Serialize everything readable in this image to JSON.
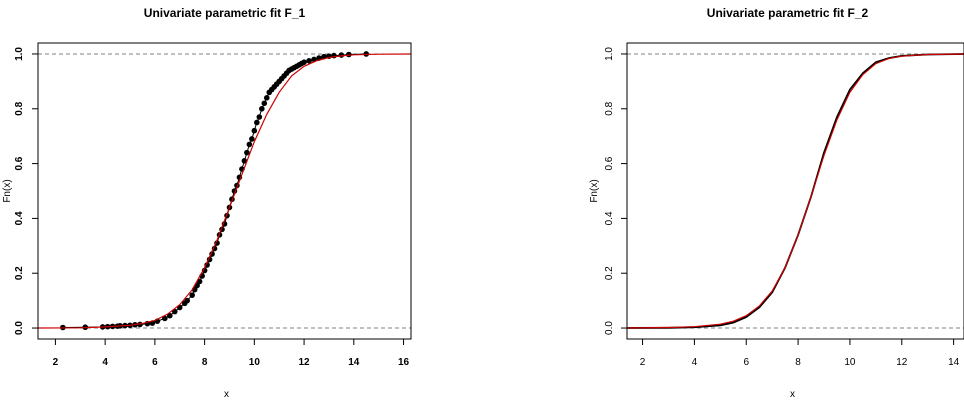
{
  "chart_data": [
    {
      "type": "line",
      "title": "Univariate parametric fit F_1",
      "xlabel": "x",
      "ylabel": "Fn(x)",
      "xlim": [
        1.3,
        16.3
      ],
      "ylim": [
        -0.04,
        1.04
      ],
      "x_ticks": [
        2,
        4,
        6,
        8,
        10,
        12,
        14,
        16
      ],
      "y_ticks": [
        0.0,
        0.2,
        0.4,
        0.6,
        0.8,
        1.0
      ],
      "x_tick_labels": [
        "2",
        "4",
        "6",
        "8",
        "10",
        "12",
        "14",
        "16"
      ],
      "y_tick_labels": [
        "0.0",
        "0.2",
        "0.4",
        "0.6",
        "0.8",
        "1.0"
      ],
      "reference_lines_y": [
        0.0,
        1.0
      ],
      "series": [
        {
          "kind": "empirical_points",
          "color": "#000000",
          "x": [
            2.3,
            3.2,
            3.9,
            4.1,
            4.3,
            4.5,
            4.6,
            4.8,
            5.0,
            5.2,
            5.4,
            5.7,
            5.9,
            6.1,
            6.4,
            6.6,
            6.8,
            7.0,
            7.2,
            7.3,
            7.5,
            7.6,
            7.7,
            7.8,
            7.9,
            8.0,
            8.1,
            8.2,
            8.3,
            8.4,
            8.5,
            8.6,
            8.7,
            8.8,
            8.9,
            9.0,
            9.1,
            9.2,
            9.3,
            9.4,
            9.5,
            9.6,
            9.7,
            9.8,
            9.9,
            10.0,
            10.1,
            10.2,
            10.3,
            10.4,
            10.5,
            10.6,
            10.7,
            10.8,
            10.9,
            11.0,
            11.1,
            11.2,
            11.3,
            11.4,
            11.5,
            11.6,
            11.7,
            11.8,
            11.9,
            12.0,
            12.2,
            12.4,
            12.6,
            12.8,
            13.0,
            13.2,
            13.5,
            13.8,
            14.5
          ],
          "y": [
            0.002,
            0.003,
            0.004,
            0.005,
            0.006,
            0.007,
            0.008,
            0.009,
            0.01,
            0.012,
            0.013,
            0.016,
            0.018,
            0.025,
            0.035,
            0.045,
            0.06,
            0.075,
            0.09,
            0.1,
            0.12,
            0.14,
            0.155,
            0.17,
            0.19,
            0.21,
            0.23,
            0.25,
            0.27,
            0.29,
            0.31,
            0.34,
            0.36,
            0.38,
            0.41,
            0.44,
            0.47,
            0.5,
            0.52,
            0.55,
            0.58,
            0.61,
            0.64,
            0.67,
            0.69,
            0.72,
            0.75,
            0.77,
            0.8,
            0.82,
            0.84,
            0.86,
            0.87,
            0.88,
            0.89,
            0.9,
            0.91,
            0.92,
            0.93,
            0.94,
            0.945,
            0.95,
            0.955,
            0.96,
            0.965,
            0.97,
            0.975,
            0.98,
            0.985,
            0.99,
            0.992,
            0.994,
            0.996,
            0.998,
            1.0
          ]
        },
        {
          "kind": "fitted_cdf",
          "color": "#cc0000",
          "x": [
            1.3,
            3.0,
            4.0,
            5.0,
            5.5,
            6.0,
            6.5,
            7.0,
            7.5,
            8.0,
            8.5,
            9.0,
            9.5,
            10.0,
            10.5,
            11.0,
            11.5,
            12.0,
            12.5,
            13.0,
            13.5,
            14.0,
            15.0,
            16.3
          ],
          "y": [
            0.0,
            0.001,
            0.004,
            0.01,
            0.017,
            0.028,
            0.05,
            0.085,
            0.14,
            0.22,
            0.32,
            0.44,
            0.56,
            0.68,
            0.78,
            0.86,
            0.92,
            0.955,
            0.975,
            0.987,
            0.993,
            0.997,
            0.999,
            1.0
          ]
        }
      ]
    },
    {
      "type": "line",
      "title": "Univariate parametric fit F_2",
      "xlabel": "x",
      "ylabel": "Fn(x)",
      "xlim": [
        1.4,
        14.4
      ],
      "ylim": [
        -0.04,
        1.04
      ],
      "x_ticks": [
        2,
        4,
        6,
        8,
        10,
        12,
        14
      ],
      "y_ticks": [
        0.0,
        0.2,
        0.4,
        0.6,
        0.8,
        1.0
      ],
      "x_tick_labels": [
        "2",
        "4",
        "6",
        "8",
        "10",
        "12",
        "14"
      ],
      "y_tick_labels": [
        "0.0",
        "0.2",
        "0.4",
        "0.6",
        "0.8",
        "1.0"
      ],
      "reference_lines_y": [
        0.0,
        1.0
      ],
      "series": [
        {
          "kind": "empirical_cdf",
          "color": "#000000",
          "x": [
            1.4,
            3.0,
            4.0,
            5.0,
            5.5,
            6.0,
            6.5,
            7.0,
            7.5,
            8.0,
            8.5,
            9.0,
            9.5,
            10.0,
            10.5,
            11.0,
            11.5,
            12.0,
            13.0,
            14.4
          ],
          "y": [
            0.0,
            0.001,
            0.003,
            0.01,
            0.02,
            0.04,
            0.075,
            0.13,
            0.22,
            0.34,
            0.48,
            0.64,
            0.77,
            0.87,
            0.93,
            0.97,
            0.985,
            0.993,
            0.998,
            1.0
          ]
        },
        {
          "kind": "fitted_cdf",
          "color": "#cc0000",
          "x": [
            1.4,
            3.0,
            4.0,
            5.0,
            5.5,
            6.0,
            6.5,
            7.0,
            7.5,
            8.0,
            8.5,
            9.0,
            9.5,
            10.0,
            10.5,
            11.0,
            11.5,
            12.0,
            13.0,
            14.4
          ],
          "y": [
            0.0,
            0.002,
            0.005,
            0.014,
            0.025,
            0.045,
            0.08,
            0.135,
            0.22,
            0.34,
            0.48,
            0.63,
            0.76,
            0.86,
            0.925,
            0.965,
            0.983,
            0.992,
            0.998,
            1.0
          ]
        }
      ]
    }
  ]
}
